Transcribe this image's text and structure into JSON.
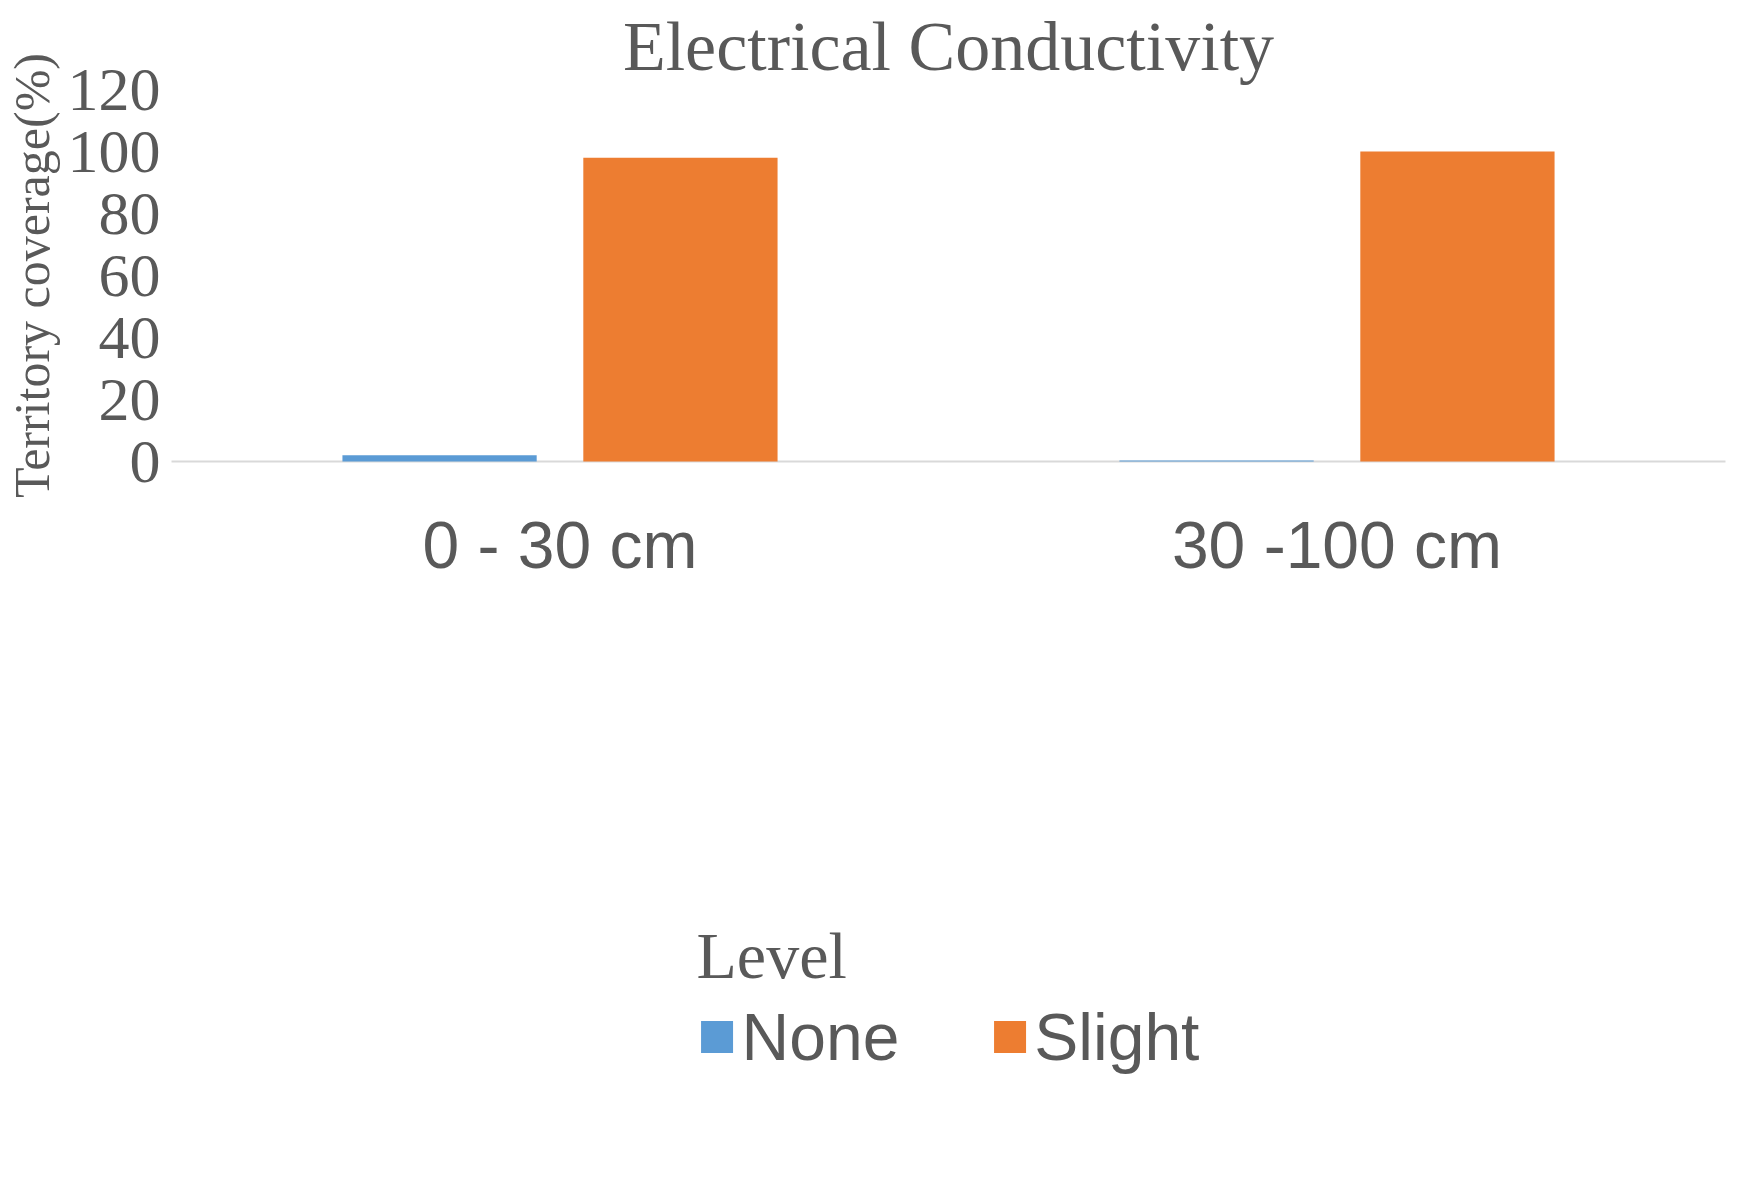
{
  "chart_data": {
    "type": "bar",
    "title": "Electrical Conductivity",
    "ylabel": "Territory coverage(%)",
    "legend_title": "Level",
    "categories": [
      "0 - 30 cm",
      "30 -100 cm"
    ],
    "series": [
      {
        "name": "None",
        "color": "#5b9bd5",
        "values": [
          2,
          0.3
        ]
      },
      {
        "name": "Slight",
        "color": "#ed7d31",
        "values": [
          98,
          100
        ]
      }
    ],
    "ylim": [
      0,
      120
    ],
    "yticks": [
      0,
      20,
      40,
      60,
      80,
      100,
      120
    ],
    "grid": false,
    "legend": "bottom"
  }
}
